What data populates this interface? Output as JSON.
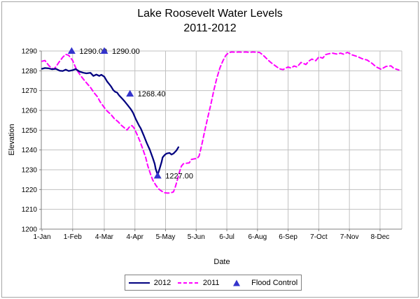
{
  "title": {
    "line1": "Lake Roosevelt Water Levels",
    "line2": "2011-2012"
  },
  "axes": {
    "x_label": "Date",
    "y_label": "Elevation"
  },
  "legend": [
    {
      "name": "2012",
      "type": "solid-line",
      "color": "#000080"
    },
    {
      "name": "2011",
      "type": "dashed-line",
      "color": "#FF00FF"
    },
    {
      "name": "Flood Control",
      "type": "triangle",
      "color": "#3333CC"
    }
  ],
  "chart_data": {
    "type": "line",
    "title": "Lake Roosevelt Water Levels 2011-2012",
    "xlabel": "Date",
    "ylabel": "Elevation",
    "ylim": [
      1200,
      1290
    ],
    "yticks": [
      1200,
      1210,
      1220,
      1230,
      1240,
      1250,
      1260,
      1270,
      1280,
      1290
    ],
    "x_domain_days": [
      1,
      366
    ],
    "grid": true,
    "legend_position": "bottom",
    "colors": {
      "grid": "#c0c0c0",
      "axis": "#808080",
      "text": "#000000"
    },
    "xticks": [
      {
        "day": 1,
        "label": "1-Jan"
      },
      {
        "day": 32,
        "label": "1-Feb"
      },
      {
        "day": 64,
        "label": "4-Mar"
      },
      {
        "day": 95,
        "label": "4-Apr"
      },
      {
        "day": 126,
        "label": "5-May"
      },
      {
        "day": 157,
        "label": "5-Jun"
      },
      {
        "day": 188,
        "label": "6-Jul"
      },
      {
        "day": 219,
        "label": "6-Aug"
      },
      {
        "day": 250,
        "label": "6-Sep"
      },
      {
        "day": 281,
        "label": "7-Oct"
      },
      {
        "day": 312,
        "label": "7-Nov"
      },
      {
        "day": 343,
        "label": "8-Dec"
      }
    ],
    "series": [
      {
        "name": "2011",
        "color": "#FF00FF",
        "style": "dashed",
        "width": 2,
        "points": [
          [
            1,
            1284.8
          ],
          [
            4,
            1285.2
          ],
          [
            8,
            1282.6
          ],
          [
            11,
            1281.2
          ],
          [
            13,
            1280.9
          ],
          [
            15,
            1282.0
          ],
          [
            18,
            1284.2
          ],
          [
            22,
            1286.9
          ],
          [
            25,
            1288.3
          ],
          [
            28,
            1287.8
          ],
          [
            32,
            1285.2
          ],
          [
            34,
            1282.8
          ],
          [
            36,
            1280.6
          ],
          [
            40,
            1277.6
          ],
          [
            43,
            1275.7
          ],
          [
            47,
            1273.3
          ],
          [
            50,
            1271.6
          ],
          [
            54,
            1268.7
          ],
          [
            57,
            1266.9
          ],
          [
            60,
            1264.2
          ],
          [
            64,
            1261.4
          ],
          [
            67,
            1259.6
          ],
          [
            71,
            1257.8
          ],
          [
            74,
            1255.9
          ],
          [
            78,
            1254.3
          ],
          [
            81,
            1252.6
          ],
          [
            85,
            1250.9
          ],
          [
            87,
            1250.1
          ],
          [
            90,
            1252.0
          ],
          [
            92,
            1252.3
          ],
          [
            94,
            1251.2
          ],
          [
            97,
            1248.0
          ],
          [
            100,
            1244.5
          ],
          [
            103,
            1240.5
          ],
          [
            106,
            1236.0
          ],
          [
            108,
            1232.0
          ],
          [
            111,
            1227.5
          ],
          [
            113,
            1224.8
          ],
          [
            116,
            1222.3
          ],
          [
            119,
            1220.3
          ],
          [
            122,
            1219.2
          ],
          [
            125,
            1218.4
          ],
          [
            128,
            1218.2
          ],
          [
            131,
            1218.3
          ],
          [
            134,
            1218.8
          ],
          [
            136,
            1221.5
          ],
          [
            138,
            1225.0
          ],
          [
            140,
            1228.8
          ],
          [
            142,
            1231.8
          ],
          [
            144,
            1233.0
          ],
          [
            147,
            1233.3
          ],
          [
            150,
            1233.5
          ],
          [
            152,
            1235.2
          ],
          [
            155,
            1235.5
          ],
          [
            158,
            1235.7
          ],
          [
            160,
            1237.0
          ],
          [
            163,
            1243.5
          ],
          [
            166,
            1250.5
          ],
          [
            169,
            1257.0
          ],
          [
            172,
            1263.5
          ],
          [
            175,
            1270.5
          ],
          [
            178,
            1276.5
          ],
          [
            181,
            1281.5
          ],
          [
            184,
            1285.0
          ],
          [
            187,
            1287.8
          ],
          [
            190,
            1289.2
          ],
          [
            193,
            1289.5
          ],
          [
            197,
            1289.4
          ],
          [
            200,
            1289.5
          ],
          [
            204,
            1289.4
          ],
          [
            207,
            1289.5
          ],
          [
            211,
            1289.3
          ],
          [
            214,
            1289.5
          ],
          [
            218,
            1289.4
          ],
          [
            221,
            1289.3
          ],
          [
            224,
            1288.2
          ],
          [
            227,
            1286.8
          ],
          [
            230,
            1285.3
          ],
          [
            233,
            1284.0
          ],
          [
            236,
            1282.9
          ],
          [
            239,
            1281.8
          ],
          [
            242,
            1280.9
          ],
          [
            245,
            1280.6
          ],
          [
            248,
            1281.5
          ],
          [
            250,
            1281.9
          ],
          [
            253,
            1281.4
          ],
          [
            256,
            1282.4
          ],
          [
            259,
            1281.9
          ],
          [
            263,
            1284.2
          ],
          [
            268,
            1283.2
          ],
          [
            271,
            1284.9
          ],
          [
            274,
            1285.9
          ],
          [
            278,
            1285.1
          ],
          [
            281,
            1287.0
          ],
          [
            285,
            1286.4
          ],
          [
            288,
            1288.2
          ],
          [
            292,
            1288.7
          ],
          [
            295,
            1288.9
          ],
          [
            299,
            1288.5
          ],
          [
            303,
            1288.9
          ],
          [
            306,
            1288.4
          ],
          [
            310,
            1289.3
          ],
          [
            315,
            1288.0
          ],
          [
            320,
            1287.2
          ],
          [
            325,
            1286.1
          ],
          [
            330,
            1285.4
          ],
          [
            335,
            1283.7
          ],
          [
            339,
            1282.0
          ],
          [
            344,
            1280.8
          ],
          [
            349,
            1282.2
          ],
          [
            354,
            1282.5
          ],
          [
            357,
            1281.2
          ],
          [
            362,
            1280.4
          ]
        ]
      },
      {
        "name": "2012",
        "color": "#000080",
        "style": "solid",
        "width": 2.25,
        "points": [
          [
            1,
            1281.0
          ],
          [
            4,
            1281.4
          ],
          [
            8,
            1281.2
          ],
          [
            11,
            1280.8
          ],
          [
            15,
            1281.0
          ],
          [
            19,
            1280.0
          ],
          [
            22,
            1279.9
          ],
          [
            25,
            1280.6
          ],
          [
            28,
            1279.9
          ],
          [
            32,
            1280.3
          ],
          [
            35,
            1280.9
          ],
          [
            39,
            1279.6
          ],
          [
            43,
            1279.0
          ],
          [
            46,
            1278.7
          ],
          [
            50,
            1279.0
          ],
          [
            53,
            1277.4
          ],
          [
            56,
            1278.1
          ],
          [
            59,
            1277.4
          ],
          [
            61,
            1278.0
          ],
          [
            64,
            1277.0
          ],
          [
            67,
            1274.5
          ],
          [
            69,
            1273.3
          ],
          [
            71,
            1272.0
          ],
          [
            73,
            1270.3
          ],
          [
            75,
            1269.4
          ],
          [
            77,
            1269.0
          ],
          [
            79,
            1267.6
          ],
          [
            82,
            1266.0
          ],
          [
            85,
            1264.3
          ],
          [
            88,
            1262.4
          ],
          [
            91,
            1260.5
          ],
          [
            93,
            1258.9
          ],
          [
            96,
            1255.5
          ],
          [
            99,
            1252.5
          ],
          [
            101,
            1250.8
          ],
          [
            104,
            1247.3
          ],
          [
            107,
            1243.5
          ],
          [
            110,
            1240.2
          ],
          [
            113,
            1236.0
          ],
          [
            115,
            1233.0
          ],
          [
            116,
            1230.5
          ],
          [
            118,
            1227.4
          ],
          [
            120,
            1230.5
          ],
          [
            122,
            1234.0
          ],
          [
            123,
            1236.2
          ],
          [
            125,
            1237.4
          ],
          [
            127,
            1238.2
          ],
          [
            130,
            1238.5
          ],
          [
            132,
            1237.7
          ],
          [
            134,
            1238.2
          ],
          [
            137,
            1239.7
          ],
          [
            139,
            1241.4
          ]
        ]
      }
    ],
    "markers": {
      "name": "Flood Control",
      "color": "#3333CC",
      "shape": "triangle",
      "points": [
        {
          "day": 31,
          "value": 1290.0,
          "label": "1290.00"
        },
        {
          "day": 64,
          "value": 1290.0,
          "label": "1290.00"
        },
        {
          "day": 90,
          "value": 1268.4,
          "label": "1268.40"
        },
        {
          "day": 118,
          "value": 1227.0,
          "label": "1227.00"
        }
      ]
    }
  }
}
